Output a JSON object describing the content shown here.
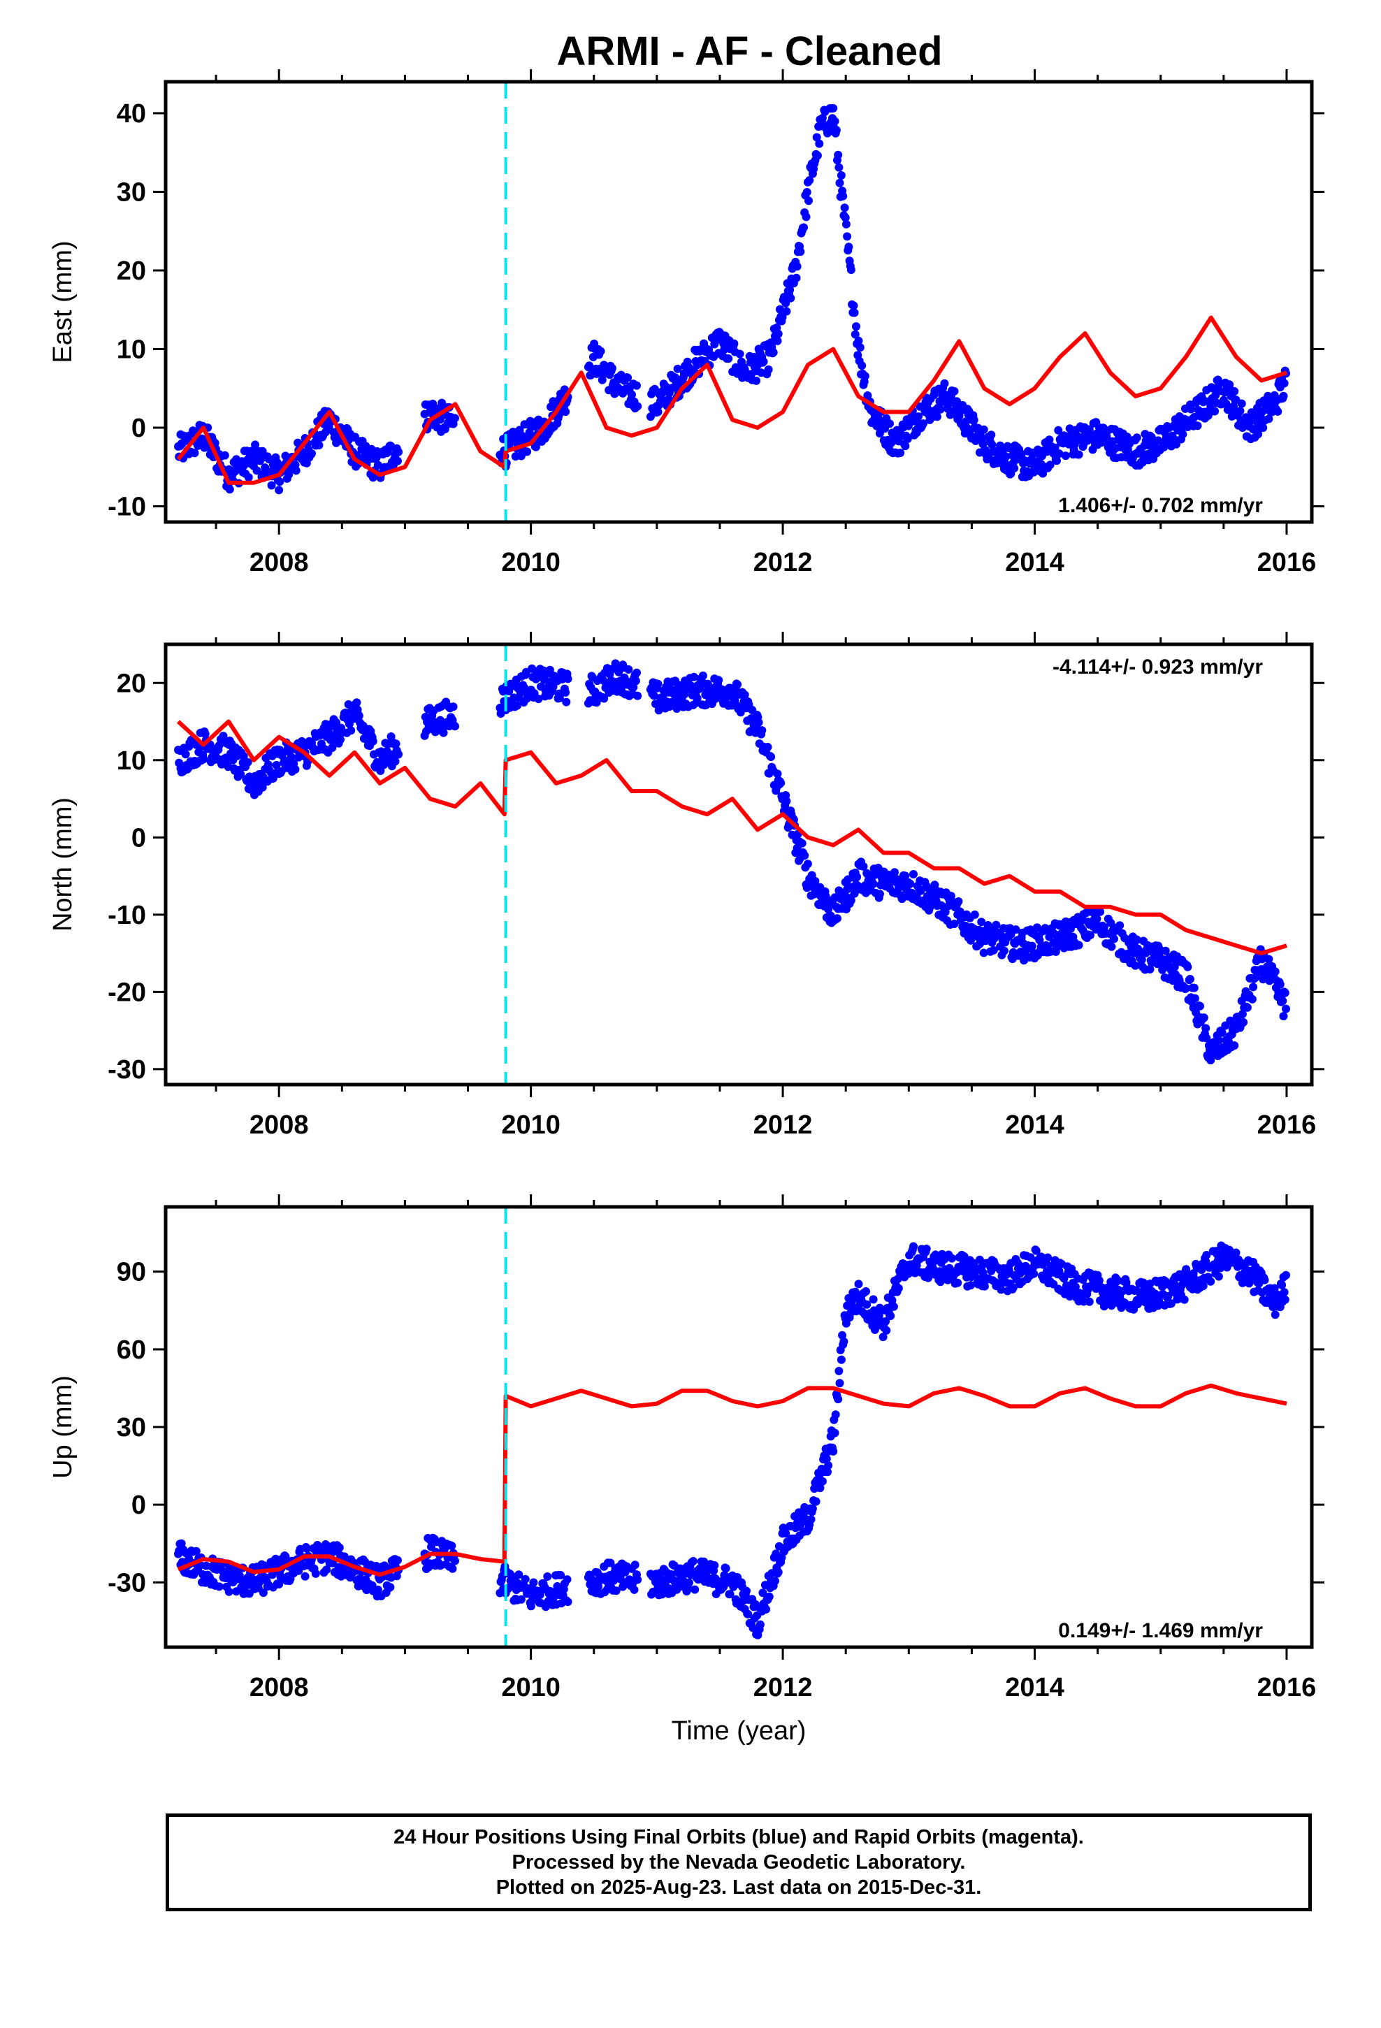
{
  "title": "ARMI  - AF - Cleaned",
  "footer": {
    "line1": "24 Hour Positions Using Final Orbits (blue) and Rapid Orbits (magenta).",
    "line2": "Processed by the Nevada Geodetic Laboratory.",
    "line3": "Plotted on 2025-Aug-23. Last data on 2015-Dec-31."
  },
  "colors": {
    "data": "#0000ff",
    "model": "#ff0000",
    "offset": "#00e5ee"
  },
  "chart_data": [
    {
      "type": "scatter",
      "ylabel": "East (mm)",
      "xlim": [
        2007.1,
        2016.2
      ],
      "ylim": [
        -12,
        44
      ],
      "xticks": [
        2008,
        2010,
        2012,
        2014,
        2016
      ],
      "yticks": [
        -10,
        0,
        10,
        20,
        30,
        40
      ],
      "rate": "1.406+/- 0.702 mm/yr",
      "rate_position": "bottom-right",
      "offset_epoch": 2009.8,
      "series": [
        {
          "kind": "observed",
          "x": [
            2007.2,
            2007.4,
            2007.6,
            2007.8,
            2008.0,
            2008.2,
            2008.4,
            2008.6,
            2008.8,
            2009.2,
            2009.8,
            2010.0,
            2010.1,
            2010.5,
            2010.7,
            2011.0,
            2011.3,
            2011.5,
            2011.7,
            2011.9,
            2012.1,
            2012.2,
            2012.3,
            2012.4,
            2012.5,
            2012.6,
            2012.7,
            2012.9,
            2013.1,
            2013.3,
            2013.6,
            2013.8,
            2014.0,
            2014.2,
            2014.5,
            2014.8,
            2015.0,
            2015.3,
            2015.5,
            2015.7,
            2015.9,
            2016.0
          ],
          "y": [
            -3,
            -1,
            -6,
            -4,
            -6,
            -3,
            1,
            -3,
            -5,
            2,
            -3,
            -1,
            0,
            9,
            5,
            3,
            8,
            11,
            7,
            9,
            20,
            30,
            38,
            40,
            25,
            10,
            2,
            -2,
            2,
            4,
            -2,
            -4,
            -5,
            -2,
            -1,
            -3,
            -2,
            2,
            5,
            0,
            3,
            6
          ]
        },
        {
          "kind": "model",
          "x": [
            2007.2,
            2007.4,
            2007.6,
            2007.8,
            2008.0,
            2008.2,
            2008.4,
            2008.6,
            2008.8,
            2009.0,
            2009.2,
            2009.4,
            2009.6,
            2009.79,
            2009.8,
            2010.0,
            2010.2,
            2010.4,
            2010.6,
            2010.8,
            2011.0,
            2011.2,
            2011.4,
            2011.6,
            2011.8,
            2012.0,
            2012.2,
            2012.4,
            2012.6,
            2012.8,
            2013.0,
            2013.2,
            2013.4,
            2013.6,
            2013.8,
            2014.0,
            2014.2,
            2014.4,
            2014.6,
            2014.8,
            2015.0,
            2015.2,
            2015.4,
            2015.6,
            2015.8,
            2016.0
          ],
          "y": [
            -4,
            0,
            -7,
            -7,
            -6,
            -2,
            2,
            -4,
            -6,
            -5,
            1,
            3,
            -3,
            -5,
            -3,
            -2,
            2,
            7,
            0,
            -1,
            0,
            5,
            8,
            1,
            0,
            2,
            8,
            10,
            4,
            2,
            2,
            6,
            11,
            5,
            3,
            5,
            9,
            12,
            7,
            4,
            5,
            9,
            14,
            9,
            6,
            7
          ]
        }
      ]
    },
    {
      "type": "scatter",
      "ylabel": "North (mm)",
      "xlim": [
        2007.1,
        2016.2
      ],
      "ylim": [
        -32,
        25
      ],
      "xticks": [
        2008,
        2010,
        2012,
        2014,
        2016
      ],
      "yticks": [
        -30,
        -20,
        -10,
        0,
        10,
        20
      ],
      "rate": "-4.114+/- 0.923 mm/yr",
      "rate_position": "top-right",
      "offset_epoch": 2009.8,
      "series": [
        {
          "kind": "observed",
          "x": [
            2007.2,
            2007.4,
            2007.6,
            2007.8,
            2008.0,
            2008.2,
            2008.4,
            2008.6,
            2008.8,
            2009.2,
            2009.8,
            2010.0,
            2010.5,
            2010.7,
            2011.0,
            2011.3,
            2011.6,
            2011.8,
            2012.0,
            2012.2,
            2012.4,
            2012.6,
            2012.8,
            2013.0,
            2013.3,
            2013.6,
            2013.9,
            2014.2,
            2014.5,
            2014.8,
            2015.0,
            2015.2,
            2015.4,
            2015.6,
            2015.8,
            2016.0
          ],
          "y": [
            10,
            12,
            11,
            7,
            10,
            11,
            13,
            16,
            10,
            15,
            18,
            20,
            19,
            21,
            18,
            19,
            19,
            14,
            5,
            -5,
            -10,
            -5,
            -6,
            -6,
            -9,
            -13,
            -14,
            -13,
            -11,
            -15,
            -16,
            -18,
            -28,
            -25,
            -16,
            -22
          ]
        },
        {
          "kind": "model",
          "x": [
            2007.2,
            2007.4,
            2007.6,
            2007.8,
            2008.0,
            2008.2,
            2008.4,
            2008.6,
            2008.8,
            2009.0,
            2009.2,
            2009.4,
            2009.6,
            2009.79,
            2009.8,
            2010.0,
            2010.2,
            2010.4,
            2010.6,
            2010.8,
            2011.0,
            2011.2,
            2011.4,
            2011.6,
            2011.8,
            2012.0,
            2012.2,
            2012.4,
            2012.6,
            2012.8,
            2013.0,
            2013.2,
            2013.4,
            2013.6,
            2013.8,
            2014.0,
            2014.2,
            2014.4,
            2014.6,
            2014.8,
            2015.0,
            2015.2,
            2015.4,
            2015.6,
            2015.8,
            2016.0
          ],
          "y": [
            15,
            12,
            15,
            10,
            13,
            11,
            8,
            11,
            7,
            9,
            5,
            4,
            7,
            3,
            10,
            11,
            7,
            8,
            10,
            6,
            6,
            4,
            3,
            5,
            1,
            3,
            0,
            -1,
            1,
            -2,
            -2,
            -4,
            -4,
            -6,
            -5,
            -7,
            -7,
            -9,
            -9,
            -10,
            -10,
            -12,
            -13,
            -14,
            -15,
            -14
          ]
        }
      ]
    },
    {
      "type": "scatter",
      "ylabel": "Up (mm)",
      "xlabel": "Time (year)",
      "xlim": [
        2007.1,
        2016.2
      ],
      "ylim": [
        -55,
        115
      ],
      "xticks": [
        2008,
        2010,
        2012,
        2014,
        2016
      ],
      "yticks": [
        -30,
        0,
        30,
        60,
        90
      ],
      "rate": "0.149+/- 1.469 mm/yr",
      "rate_position": "bottom-right",
      "offset_epoch": 2009.8,
      "series": [
        {
          "kind": "observed",
          "x": [
            2007.2,
            2007.4,
            2007.6,
            2007.8,
            2008.0,
            2008.2,
            2008.4,
            2008.6,
            2008.8,
            2009.2,
            2009.8,
            2010.0,
            2010.6,
            2011.0,
            2011.3,
            2011.6,
            2011.8,
            2012.0,
            2012.2,
            2012.4,
            2012.5,
            2012.6,
            2012.8,
            2013.0,
            2013.2,
            2013.5,
            2013.8,
            2014.0,
            2014.3,
            2014.6,
            2014.9,
            2015.2,
            2015.5,
            2015.7,
            2015.9,
            2016.0
          ],
          "y": [
            -20,
            -25,
            -28,
            -30,
            -26,
            -22,
            -20,
            -25,
            -30,
            -18,
            -30,
            -35,
            -28,
            -30,
            -27,
            -30,
            -45,
            -15,
            -5,
            25,
            75,
            80,
            70,
            95,
            92,
            90,
            88,
            93,
            85,
            82,
            80,
            85,
            95,
            90,
            78,
            84
          ]
        },
        {
          "kind": "model",
          "x": [
            2007.2,
            2007.4,
            2007.6,
            2007.8,
            2008.0,
            2008.2,
            2008.4,
            2008.6,
            2008.8,
            2009.0,
            2009.2,
            2009.4,
            2009.6,
            2009.79,
            2009.8,
            2010.0,
            2010.2,
            2010.4,
            2010.6,
            2010.8,
            2011.0,
            2011.2,
            2011.4,
            2011.6,
            2011.8,
            2012.0,
            2012.2,
            2012.4,
            2012.6,
            2012.8,
            2013.0,
            2013.2,
            2013.4,
            2013.6,
            2013.8,
            2014.0,
            2014.2,
            2014.4,
            2014.6,
            2014.8,
            2015.0,
            2015.2,
            2015.4,
            2015.6,
            2015.8,
            2016.0
          ],
          "y": [
            -25,
            -21,
            -22,
            -26,
            -25,
            -20,
            -20,
            -24,
            -27,
            -24,
            -19,
            -19,
            -21,
            -22,
            42,
            38,
            41,
            44,
            41,
            38,
            39,
            44,
            44,
            40,
            38,
            40,
            45,
            45,
            42,
            39,
            38,
            43,
            45,
            42,
            38,
            38,
            43,
            45,
            41,
            38,
            38,
            43,
            46,
            43,
            41,
            39
          ]
        }
      ]
    }
  ]
}
